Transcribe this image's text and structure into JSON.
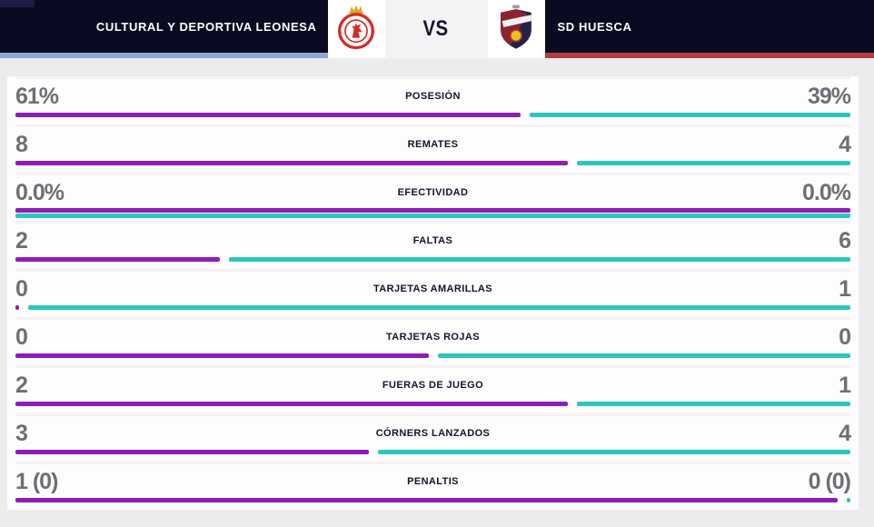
{
  "header": {
    "home_team": "CULTURAL Y DEPORTIVA LEONESA",
    "vs_label": "VS",
    "away_team": "SD HUESCA",
    "home_accent_color": "#8fa5d6",
    "away_accent_color": "#b23c44",
    "bar_background": "#0a0a22"
  },
  "stats": {
    "home_color": "#8e1db8",
    "away_color": "#2cc6c1",
    "rows": [
      {
        "label": "POSESIÓN",
        "home": "61%",
        "away": "39%",
        "home_pct": 61,
        "away_pct": 39,
        "layout": "split"
      },
      {
        "label": "REMATES",
        "home": "8",
        "away": "4",
        "home_pct": 66.7,
        "away_pct": 33.3,
        "layout": "split"
      },
      {
        "label": "EFECTIVIDAD",
        "home": "0.0%",
        "away": "0.0%",
        "home_pct": 100,
        "away_pct": 100,
        "layout": "stacked"
      },
      {
        "label": "FALTAS",
        "home": "2",
        "away": "6",
        "home_pct": 25,
        "away_pct": 75,
        "layout": "split"
      },
      {
        "label": "TARJETAS AMARILLAS",
        "home": "0",
        "away": "1",
        "home_pct": 1,
        "away_pct": 99,
        "layout": "split"
      },
      {
        "label": "TARJETAS ROJAS",
        "home": "0",
        "away": "0",
        "home_pct": 50,
        "away_pct": 50,
        "layout": "split"
      },
      {
        "label": "FUERAS DE JUEGO",
        "home": "2",
        "away": "1",
        "home_pct": 66.7,
        "away_pct": 33.3,
        "layout": "split"
      },
      {
        "label": "CÓRNERS LANZADOS",
        "home": "3",
        "away": "4",
        "home_pct": 42.9,
        "away_pct": 57.1,
        "layout": "split"
      },
      {
        "label": "PENALTIS",
        "home": "1 (0)",
        "away": "0 (0)",
        "home_pct": 99,
        "away_pct": 1,
        "layout": "split"
      }
    ]
  },
  "chart_data": {
    "type": "bar",
    "title": "CULTURAL Y DEPORTIVA LEONESA VS SD HUESCA",
    "categories": [
      "POSESIÓN",
      "REMATES",
      "EFECTIVIDAD",
      "FALTAS",
      "TARJETAS AMARILLAS",
      "TARJETAS ROJAS",
      "FUERAS DE JUEGO",
      "CÓRNERS LANZADOS",
      "PENALTIS"
    ],
    "series": [
      {
        "name": "CULTURAL Y DEPORTIVA LEONESA",
        "color": "#8e1db8",
        "values": [
          61,
          8,
          0.0,
          2,
          0,
          0,
          2,
          3,
          1
        ],
        "display": [
          "61%",
          "8",
          "0.0%",
          "2",
          "0",
          "0",
          "2",
          "3",
          "1 (0)"
        ]
      },
      {
        "name": "SD HUESCA",
        "color": "#2cc6c1",
        "values": [
          39,
          4,
          0.0,
          6,
          1,
          0,
          1,
          4,
          0
        ],
        "display": [
          "39%",
          "4",
          "0.0%",
          "6",
          "1",
          "0",
          "1",
          "4",
          "0 (0)"
        ]
      }
    ],
    "legend_position": "header",
    "grid": false
  }
}
